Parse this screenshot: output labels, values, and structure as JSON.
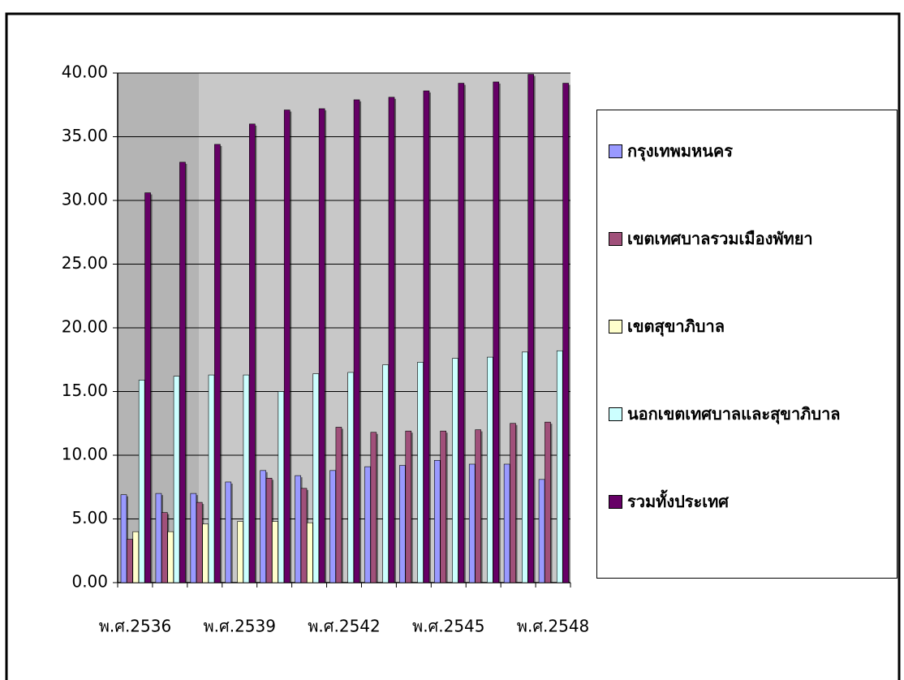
{
  "chart_data": {
    "type": "bar",
    "categories": [
      "พ.ศ.2536",
      null,
      null,
      "พ.ศ.2539",
      null,
      null,
      "พ.ศ.2542",
      null,
      null,
      "พ.ศ.2545",
      null,
      null,
      "พ.ศ.2548"
    ],
    "series": [
      {
        "name": "กรุงเทพมหนคร",
        "color": "#9999ff",
        "values": [
          6.9,
          7.0,
          7.0,
          7.9,
          8.8,
          8.4,
          8.8,
          9.1,
          9.2,
          9.6,
          9.3,
          9.3,
          8.1
        ]
      },
      {
        "name": "เขตเทศบาลรวมเมืองพัทยา",
        "color": "#a0507a",
        "values": [
          3.4,
          5.5,
          6.3,
          null,
          8.2,
          7.4,
          12.2,
          11.8,
          11.9,
          11.9,
          12.0,
          12.5,
          12.6
        ]
      },
      {
        "name": "เขตสุขาภิบาล",
        "color": "#ffffcc",
        "values": [
          4.0,
          4.0,
          4.6,
          4.8,
          4.8,
          4.7,
          null,
          null,
          null,
          null,
          null,
          null,
          null
        ]
      },
      {
        "name": "นอกเขตเทศบาลและสุขาภิบาล",
        "color": "#ccffff",
        "values": [
          15.9,
          16.2,
          16.3,
          16.3,
          15.0,
          16.4,
          16.5,
          17.1,
          17.3,
          17.6,
          17.7,
          18.1,
          18.2
        ]
      },
      {
        "name": "รวมทั้งประเทศ",
        "color": "#660066",
        "values": [
          30.6,
          33.0,
          34.4,
          36.0,
          37.1,
          37.2,
          37.9,
          38.1,
          38.6,
          39.2,
          39.3,
          39.9,
          39.2
        ]
      }
    ],
    "ylim": [
      0,
      40
    ],
    "yticks": [
      {
        "value": 0,
        "label": "0.00"
      },
      {
        "value": 5,
        "label": "5.00"
      },
      {
        "value": 10,
        "label": "10.00"
      },
      {
        "value": 15,
        "label": "15.00"
      },
      {
        "value": 20,
        "label": "20.00"
      },
      {
        "value": 25,
        "label": "25.00"
      },
      {
        "value": 30,
        "label": "30.00"
      },
      {
        "value": 35,
        "label": "35.00"
      },
      {
        "value": 40,
        "label": "40.00"
      }
    ],
    "grid": true,
    "legend": "right"
  }
}
